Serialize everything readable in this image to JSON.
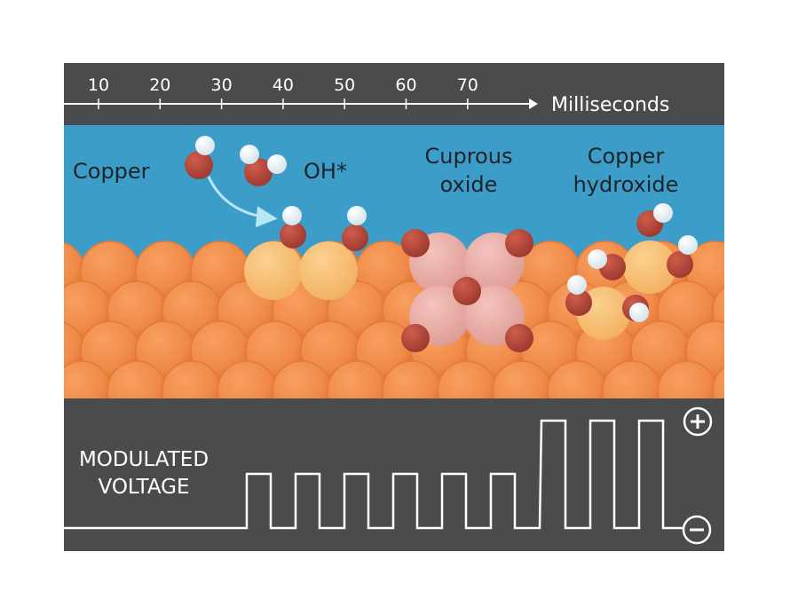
{
  "timeline": {
    "ticks": [
      "10",
      "20",
      "30",
      "40",
      "50",
      "60",
      "70"
    ],
    "unit_label": "Milliseconds"
  },
  "labels": {
    "copper": "Copper",
    "oh": "OH*",
    "cuprous_line1": "Cuprous",
    "cuprous_line2": "oxide",
    "hydroxide_line1": "Copper",
    "hydroxide_line2": "hydroxide"
  },
  "voltage": {
    "label_line1": "MODULATED",
    "label_line2": "VOLTAGE",
    "plus_symbol": "+",
    "minus_symbol": "−"
  },
  "colors": {
    "frame": "#4a4b4d",
    "water": "#3d9dc9",
    "copper_atom": "#f08a48",
    "copper_ring": "#e2752f",
    "oxidized_copper": "#f8c178",
    "cuprous_oxide": "#e9afa7",
    "oxygen": "#b5473a",
    "hydrogen": "#e9f3f6",
    "signal_line": "#ffffff"
  }
}
